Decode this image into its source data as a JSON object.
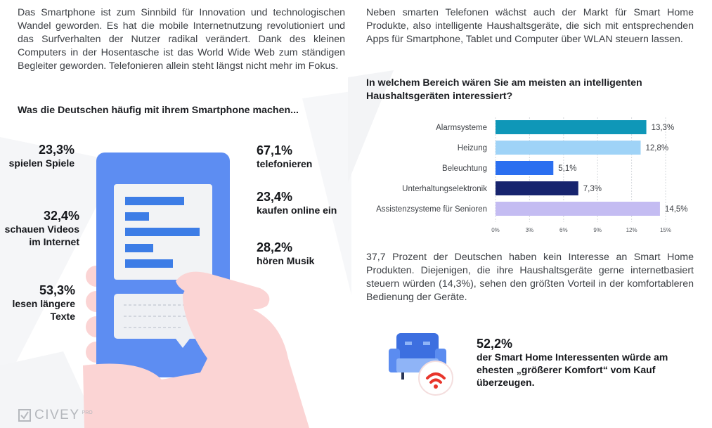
{
  "left": {
    "paragraph": "Das Smartphone ist zum Sinnbild für Innovation und technologischen Wandel geworden. Es hat die mobile Internetnutzung revolutioniert und das Surfverhalten der Nutzer radikal verändert. Dank des kleinen Computers in der Hosentasche ist das World Wide Web zum ständigen Begleiter geworden. Telefonieren allein steht längst nicht mehr im Fokus.",
    "heading": "Was die Deutschen häufig mit ihrem Smartphone machen...",
    "stats": [
      {
        "pct": "23,3%",
        "label1": "spielen Spiele",
        "label2": ""
      },
      {
        "pct": "32,4%",
        "label1": "schauen Videos",
        "label2": "im Internet"
      },
      {
        "pct": "53,3%",
        "label1": "lesen längere",
        "label2": "Texte"
      },
      {
        "pct": "67,1%",
        "label1": "telefonieren",
        "label2": ""
      },
      {
        "pct": "23,4%",
        "label1": "kaufen online ein",
        "label2": ""
      },
      {
        "pct": "28,2%",
        "label1": "hören Musik",
        "label2": ""
      }
    ]
  },
  "right": {
    "paragraph": "Neben smarten Telefonen wächst auch der Markt für Smart Home Produkte, also intelligente Haushaltsgeräte, die sich mit entsprechenden Apps für Smartphone, Tablet und Computer über WLAN steuern lassen.",
    "heading": "In welchem Bereich wären Sie am meisten an intelligenten Haushaltsgeräten interessiert?",
    "paragraph2": "37,7 Prozent der Deutschen haben kein Interesse an Smart Home Produkten. Diejenigen, die ihre Haushaltsgeräte gerne internetbasiert steuern würden (14,3%), sehen den größten Vorteil in der komfortableren Bedienung der Geräte.",
    "big_stat_pct": "52,2%",
    "big_stat_label": "der Smart Home Interessenten würde am ehesten „größerer Komfort“ vom Kauf überzeugen."
  },
  "footer": {
    "brand": "CIVEY",
    "suffix": "PRO"
  },
  "colors": {
    "phone_blue": "#5b8cf0",
    "hand_pink": "#fbd7d7",
    "text_bar_blue": "#3d7de6"
  },
  "chart_data": {
    "type": "bar",
    "orientation": "horizontal",
    "categories": [
      "Alarmsysteme",
      "Heizung",
      "Beleuchtung",
      "Unterhaltungselektronik",
      "Assistenzsysteme für Senioren"
    ],
    "values": [
      13.3,
      12.8,
      5.1,
      7.3,
      14.5
    ],
    "value_labels": [
      "13,3%",
      "12,8%",
      "5,1%",
      "7,3%",
      "14,5%"
    ],
    "colors": [
      "#0f97b8",
      "#9fd3f7",
      "#2b6ff0",
      "#17246e",
      "#c4bcf2"
    ],
    "xlim": [
      0,
      15
    ],
    "xticks": [
      0,
      3,
      6,
      9,
      12,
      15
    ],
    "xtick_labels": [
      "0%",
      "3%",
      "6%",
      "9%",
      "12%",
      "15%"
    ],
    "grid": true,
    "title": "",
    "xlabel": "",
    "ylabel": ""
  }
}
